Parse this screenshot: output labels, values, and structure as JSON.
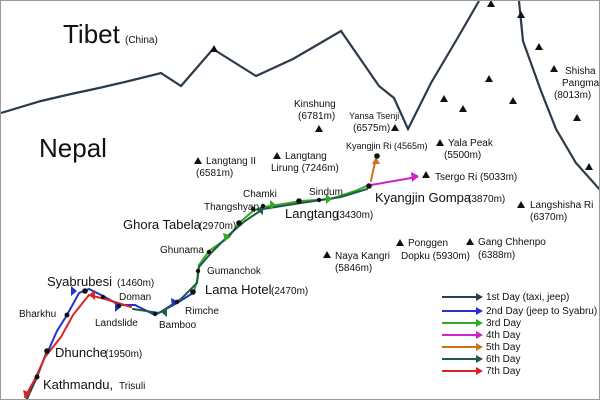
{
  "regions": {
    "tibet": "Tibet",
    "tibet_sub": "(China)",
    "nepal": "Nepal"
  },
  "peaks": [
    {
      "line1": "Kinshung",
      "line2": "(6781m)"
    },
    {
      "line1": "Yansa Tsenji",
      "line2": "(6575m)"
    },
    {
      "line1": "Shisha",
      "line2": "Pangma",
      "line3": "(8013m)"
    },
    {
      "line1": "Langtang II",
      "line2": "(6581m)"
    },
    {
      "line1": "Langtang",
      "line2": "Lirung (7246m)"
    },
    {
      "line1": "Kyangjin Ri (4565m)"
    },
    {
      "line1": "Yala Peak",
      "line2": "(5500m)"
    },
    {
      "line1": "Tsergo Ri (5033m)"
    },
    {
      "line1": "Langshisha Ri",
      "line2": "(6370m)"
    },
    {
      "line1": "Naya Kangri",
      "line2": "(5846m)"
    },
    {
      "line1": "Ponggen",
      "line2": "Dopku (5930m)"
    },
    {
      "line1": "Gang Chhenpo",
      "line2": "(6388m)"
    }
  ],
  "places": {
    "chamki": "Chamki",
    "thangshyap": "Thangshyap",
    "sindum": "Sindum",
    "ghora_name": "Ghora Tabela",
    "ghora_alt": "(2970m)",
    "langtang_name": "Langtang",
    "langtang_alt": "(3430m)",
    "kyangjin_name": "Kyangjin Gompa",
    "kyangjin_alt": "(3870m)",
    "ghunama": "Ghunama",
    "gumanchok": "Gumanchok",
    "lama_name": "Lama Hotel",
    "lama_alt": "(2470m)",
    "rimche": "Rimche",
    "bamboo": "Bamboo",
    "syabru_name": "Syabrubesi",
    "syabru_alt": "(1460m)",
    "doman": "Doman",
    "landslide": "Landslide",
    "bharkhu": "Bharkhu",
    "dhunche_name": "Dhunche",
    "dhunche_alt": "(1950m)",
    "kathmandu_name": "Kathmandu,",
    "kathmandu_sub": "Trisuli"
  },
  "legend": [
    {
      "label": "1st Day (taxi, jeep)",
      "color": "#2d3e4c"
    },
    {
      "label": "2nd Day (jeep to Syabru)",
      "color": "#2233cc"
    },
    {
      "label": "3rd Day",
      "color": "#33aa22"
    },
    {
      "label": "4th Day",
      "color": "#cc22cc"
    },
    {
      "label": "5th Day",
      "color": "#c8741a"
    },
    {
      "label": "6th Day",
      "color": "#1f5a4a"
    },
    {
      "label": "7th Day",
      "color": "#dd2222"
    }
  ]
}
